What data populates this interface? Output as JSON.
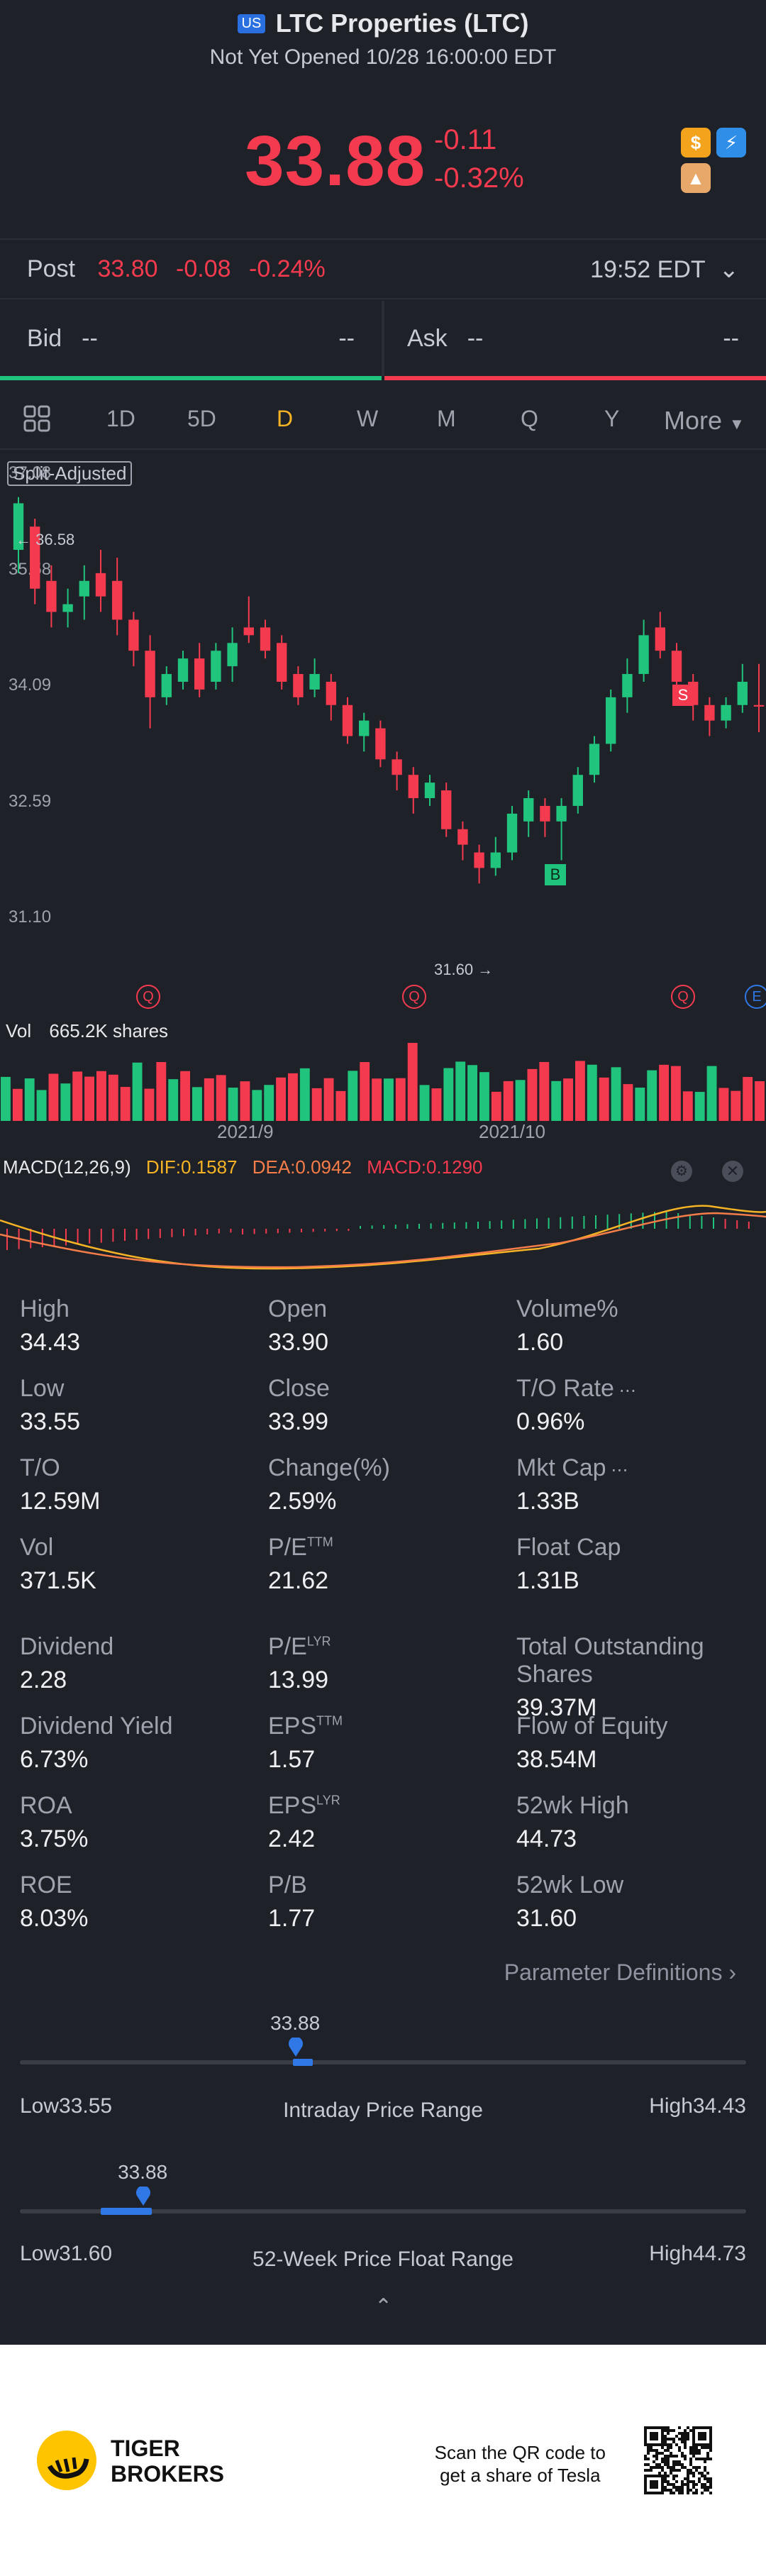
{
  "header": {
    "market_badge": "US",
    "title": "LTC Properties (LTC)",
    "subtitle": "Not Yet Opened 10/28 16:00:00 EDT",
    "price": "33.88",
    "change": "-0.11",
    "change_pct": "-0.32%"
  },
  "post": {
    "label": "Post",
    "price": "33.80",
    "change": "-0.08",
    "change_pct": "-0.24%",
    "time": "19:52 EDT"
  },
  "bidask": {
    "bid_label": "Bid",
    "bid_value": "--",
    "bid_size": "--",
    "ask_label": "Ask",
    "ask_value": "--",
    "ask_size": "--"
  },
  "tabs": [
    "1D",
    "5D",
    "D",
    "W",
    "M",
    "Q",
    "Y",
    "More"
  ],
  "active_tab": "D",
  "chart": {
    "split_label": "Split-Adjusted",
    "y_ticks": [
      "37.08",
      "35.58",
      "34.09",
      "32.59",
      "31.10"
    ],
    "high_marker": "36.58",
    "low_marker": "31.60",
    "buy_label": "B",
    "sell_label": "S",
    "q_label": "Q",
    "e_label": "E",
    "vol_label": "Vol",
    "vol_value": "665.2K shares",
    "x_ticks": [
      "2021/9",
      "2021/10"
    ],
    "macd_title": "MACD(12,26,9)",
    "dif": "DIF:0.1587",
    "dea": "DEA:0.0942",
    "macd": "MACD:0.1290"
  },
  "chart_data": {
    "type": "candlestick",
    "ylim": [
      31.1,
      37.08
    ],
    "candles": [
      {
        "o": 35.9,
        "c": 36.5,
        "h": 36.58,
        "l": 35.6
      },
      {
        "o": 36.2,
        "c": 35.4,
        "h": 36.3,
        "l": 35.2
      },
      {
        "o": 35.5,
        "c": 35.1,
        "h": 35.7,
        "l": 34.9
      },
      {
        "o": 35.1,
        "c": 35.2,
        "h": 35.4,
        "l": 34.9
      },
      {
        "o": 35.3,
        "c": 35.5,
        "h": 35.7,
        "l": 35.0
      },
      {
        "o": 35.6,
        "c": 35.3,
        "h": 35.9,
        "l": 35.1
      },
      {
        "o": 35.5,
        "c": 35.0,
        "h": 35.8,
        "l": 34.8
      },
      {
        "o": 35.0,
        "c": 34.6,
        "h": 35.1,
        "l": 34.4
      },
      {
        "o": 34.6,
        "c": 34.0,
        "h": 34.8,
        "l": 33.6
      },
      {
        "o": 34.0,
        "c": 34.3,
        "h": 34.4,
        "l": 33.9
      },
      {
        "o": 34.2,
        "c": 34.5,
        "h": 34.6,
        "l": 34.1
      },
      {
        "o": 34.5,
        "c": 34.1,
        "h": 34.7,
        "l": 34.0
      },
      {
        "o": 34.2,
        "c": 34.6,
        "h": 34.7,
        "l": 34.1
      },
      {
        "o": 34.4,
        "c": 34.7,
        "h": 34.9,
        "l": 34.2
      },
      {
        "o": 34.9,
        "c": 34.8,
        "h": 35.3,
        "l": 34.7
      },
      {
        "o": 34.9,
        "c": 34.6,
        "h": 35.0,
        "l": 34.5
      },
      {
        "o": 34.7,
        "c": 34.2,
        "h": 34.8,
        "l": 34.1
      },
      {
        "o": 34.3,
        "c": 34.0,
        "h": 34.4,
        "l": 33.9
      },
      {
        "o": 34.1,
        "c": 34.3,
        "h": 34.5,
        "l": 34.0
      },
      {
        "o": 34.2,
        "c": 33.9,
        "h": 34.3,
        "l": 33.7
      },
      {
        "o": 33.9,
        "c": 33.5,
        "h": 34.0,
        "l": 33.4
      },
      {
        "o": 33.5,
        "c": 33.7,
        "h": 33.8,
        "l": 33.3
      },
      {
        "o": 33.6,
        "c": 33.2,
        "h": 33.7,
        "l": 33.1
      },
      {
        "o": 33.2,
        "c": 33.0,
        "h": 33.3,
        "l": 32.8
      },
      {
        "o": 33.0,
        "c": 32.7,
        "h": 33.1,
        "l": 32.5
      },
      {
        "o": 32.7,
        "c": 32.9,
        "h": 33.0,
        "l": 32.6
      },
      {
        "o": 32.8,
        "c": 32.3,
        "h": 32.9,
        "l": 32.2
      },
      {
        "o": 32.3,
        "c": 32.1,
        "h": 32.4,
        "l": 31.9
      },
      {
        "o": 32.0,
        "c": 31.8,
        "h": 32.1,
        "l": 31.6
      },
      {
        "o": 31.8,
        "c": 32.0,
        "h": 32.2,
        "l": 31.7
      },
      {
        "o": 32.0,
        "c": 32.5,
        "h": 32.6,
        "l": 31.9
      },
      {
        "o": 32.4,
        "c": 32.7,
        "h": 32.8,
        "l": 32.2
      },
      {
        "o": 32.6,
        "c": 32.4,
        "h": 32.7,
        "l": 32.2
      },
      {
        "o": 32.4,
        "c": 32.6,
        "h": 32.7,
        "l": 31.9
      },
      {
        "o": 32.6,
        "c": 33.0,
        "h": 33.1,
        "l": 32.5
      },
      {
        "o": 33.0,
        "c": 33.4,
        "h": 33.5,
        "l": 32.9
      },
      {
        "o": 33.4,
        "c": 34.0,
        "h": 34.1,
        "l": 33.3
      },
      {
        "o": 34.0,
        "c": 34.3,
        "h": 34.5,
        "l": 33.8
      },
      {
        "o": 34.3,
        "c": 34.8,
        "h": 35.0,
        "l": 34.2
      },
      {
        "o": 34.9,
        "c": 34.6,
        "h": 35.1,
        "l": 34.5
      },
      {
        "o": 34.6,
        "c": 34.2,
        "h": 34.7,
        "l": 34.0
      },
      {
        "o": 34.2,
        "c": 33.9,
        "h": 34.3,
        "l": 33.7
      },
      {
        "o": 33.9,
        "c": 33.7,
        "h": 34.0,
        "l": 33.5
      },
      {
        "o": 33.7,
        "c": 33.9,
        "h": 34.0,
        "l": 33.6
      },
      {
        "o": 33.9,
        "c": 34.2,
        "h": 34.43,
        "l": 33.8
      },
      {
        "o": 33.9,
        "c": 33.88,
        "h": 34.43,
        "l": 33.55
      }
    ],
    "volume_unit": "shares"
  },
  "stats": [
    {
      "label": "High",
      "value": "34.43"
    },
    {
      "label": "Open",
      "value": "33.90"
    },
    {
      "label": "Volume%",
      "value": "1.60"
    },
    {
      "label": "Low",
      "value": "33.55"
    },
    {
      "label": "Close",
      "value": "33.99"
    },
    {
      "label": "T/O Rate",
      "value": "0.96%"
    },
    {
      "label": "T/O",
      "value": "12.59M"
    },
    {
      "label": "Change(%)",
      "value": "2.59%"
    },
    {
      "label": "Mkt Cap",
      "value": "1.33B"
    },
    {
      "label": "Vol",
      "value": "371.5K"
    },
    {
      "label": "P/E",
      "sup": "TTM",
      "value": "21.62"
    },
    {
      "label": "Float Cap",
      "value": "1.31B"
    },
    {
      "label": "Dividend",
      "value": "2.28"
    },
    {
      "label": "P/E",
      "sup": "LYR",
      "value": "13.99"
    },
    {
      "label": "Total Outstanding Shares",
      "value": "39.37M"
    },
    {
      "label": "Dividend Yield",
      "value": "6.73%"
    },
    {
      "label": "EPS",
      "sup": "TTM",
      "value": "1.57"
    },
    {
      "label": "Flow of Equity",
      "value": "38.54M"
    },
    {
      "label": "ROA",
      "value": "3.75%"
    },
    {
      "label": "EPS",
      "sup": "LYR",
      "value": "2.42"
    },
    {
      "label": "52wk High",
      "value": "44.73"
    },
    {
      "label": "ROE",
      "value": "8.03%"
    },
    {
      "label": "P/B",
      "value": "1.77"
    },
    {
      "label": "52wk Low",
      "value": "31.60"
    }
  ],
  "param_link": "Parameter Definitions",
  "intraday": {
    "current": "33.88",
    "low_label": "Low33.55",
    "high_label": "High34.43",
    "title": "Intraday Price Range",
    "position": 0.38
  },
  "week52": {
    "current": "33.88",
    "low_label": "Low31.60",
    "high_label": "High44.73",
    "title": "52-Week Price Float Range",
    "position": 0.17
  },
  "footer": {
    "brand_line1": "TIGER",
    "brand_line2": "BROKERS",
    "scan_line1": "Scan the QR code to",
    "scan_line2": "get a share of Tesla"
  },
  "colors": {
    "up": "#21c47c",
    "down": "#f43a4f",
    "accent": "#2f78e5",
    "background": "#1f2128"
  }
}
